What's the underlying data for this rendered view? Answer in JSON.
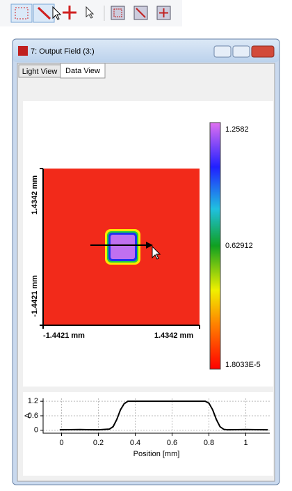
{
  "window": {
    "title": "7: Output Field (3:)",
    "tabs": [
      "Light View",
      "Data View"
    ]
  },
  "field": {
    "y_top_label": "1.4342 mm",
    "y_bottom_label": "-1.4421 mm",
    "x_left_label": "-1.4421 mm",
    "x_right_label": "1.4342 mm",
    "colorbar_labels": [
      "1.2582",
      "0.62912",
      "1.8033E-5"
    ]
  },
  "profile": {
    "type": "line",
    "xlabel": "Position [mm]",
    "ylabel": "A",
    "xlim": [
      -0.1,
      1.13
    ],
    "ylim": [
      -0.12,
      1.32
    ],
    "xticks": [
      0,
      0.2,
      0.4,
      0.6,
      0.8,
      1
    ],
    "yticks": [
      0,
      0.6,
      1.2
    ],
    "grid": true,
    "color": "#000000",
    "x": [
      -0.01,
      0.1,
      0.2,
      0.26,
      0.28,
      0.3,
      0.32,
      0.34,
      0.36,
      0.4,
      0.6,
      0.78,
      0.8,
      0.82,
      0.84,
      0.86,
      0.88,
      0.9,
      1.0,
      1.12
    ],
    "values": [
      0.02,
      0.03,
      0.02,
      0.05,
      0.15,
      0.45,
      0.85,
      1.1,
      1.2,
      1.2,
      1.2,
      1.2,
      1.12,
      0.85,
      0.45,
      0.15,
      0.04,
      0.02,
      0.03,
      0.02
    ]
  }
}
